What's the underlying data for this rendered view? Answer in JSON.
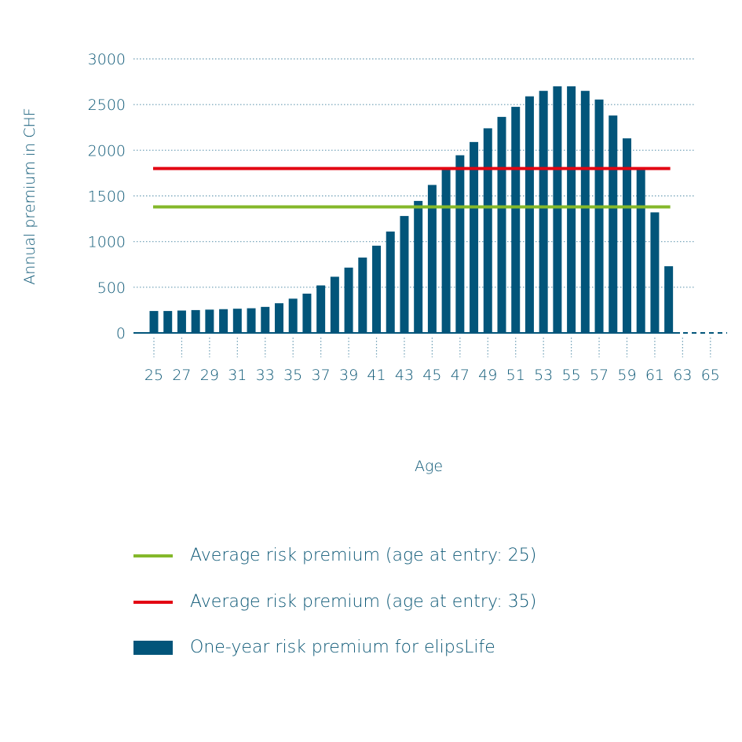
{
  "chart_data": {
    "type": "bar",
    "xlabel": "Age",
    "ylabel": "Annual premium in CHF",
    "ylim": [
      0,
      3000
    ],
    "yticks": [
      0,
      500,
      1000,
      1500,
      2000,
      2500,
      3000
    ],
    "xticks": [
      25,
      27,
      29,
      31,
      33,
      35,
      37,
      39,
      41,
      43,
      45,
      47,
      49,
      51,
      53,
      55,
      57,
      59,
      61,
      63,
      65
    ],
    "grid": true,
    "legend_position": "bottom",
    "series": [
      {
        "name": "One-year risk premium for elipsLife",
        "type": "bar",
        "color": "#02557a",
        "x": [
          25,
          26,
          27,
          28,
          29,
          30,
          31,
          32,
          33,
          34,
          35,
          36,
          37,
          38,
          39,
          40,
          41,
          42,
          43,
          44,
          45,
          46,
          47,
          48,
          49,
          50,
          51,
          52,
          53,
          54,
          55,
          56,
          57,
          58,
          59,
          60,
          61,
          62
        ],
        "values": [
          240,
          240,
          245,
          250,
          255,
          260,
          265,
          270,
          285,
          325,
          375,
          430,
          520,
          615,
          715,
          825,
          955,
          1110,
          1280,
          1445,
          1620,
          1795,
          1945,
          2090,
          2240,
          2365,
          2475,
          2590,
          2650,
          2700,
          2700,
          2650,
          2555,
          2380,
          2130,
          1795,
          1320,
          730
        ]
      },
      {
        "name": "Average risk premium (age at entry: 25)",
        "type": "line",
        "color": "#84b82a",
        "x": [
          25,
          62
        ],
        "values": [
          1380,
          1380
        ]
      },
      {
        "name": "Average risk premium (age at entry: 35)",
        "type": "line",
        "color": "#e30613",
        "x": [
          25,
          62
        ],
        "values": [
          1800,
          1800
        ]
      }
    ]
  },
  "legend": [
    {
      "label": "Average risk premium (age at entry: 25)",
      "color": "#84b82a",
      "kind": "line"
    },
    {
      "label": "Average risk premium (age at entry: 35)",
      "color": "#e30613",
      "kind": "line"
    },
    {
      "label": "One-year risk premium for elipsLife",
      "color": "#02557a",
      "kind": "bar"
    }
  ]
}
